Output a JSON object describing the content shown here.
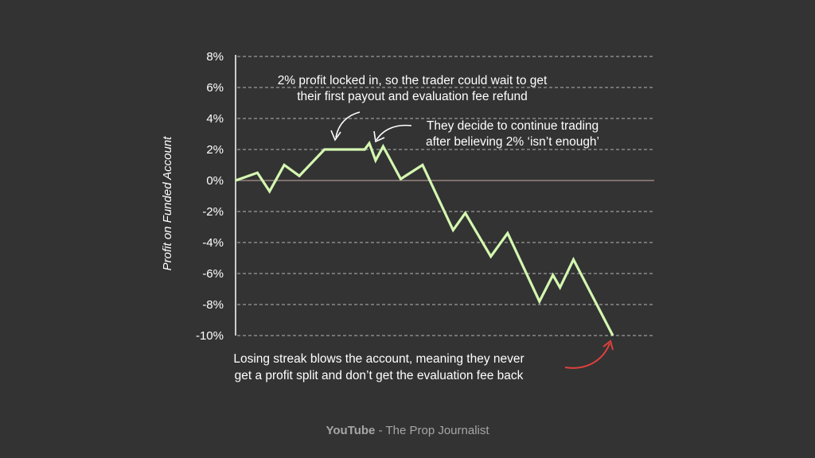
{
  "chart_data": {
    "type": "line",
    "ylabel": "Profit on Funded Account",
    "ylim": [
      -10,
      8
    ],
    "yticks": [
      8,
      6,
      4,
      2,
      0,
      -2,
      -4,
      -6,
      -8,
      -10
    ],
    "ytick_labels": [
      "8%",
      "6%",
      "4%",
      "2%",
      "0%",
      "-2%",
      "-4%",
      "-6%",
      "-8%",
      "-10%"
    ],
    "grid": true,
    "series": [
      {
        "color": "#d4f7b0",
        "x": [
          0,
          5.2,
          8.1,
          11.6,
          15.2,
          21.2,
          30.8,
          31.9,
          33.4,
          35.2,
          39.4,
          44.6,
          51.9,
          54.8,
          60.9,
          64.9,
          72.5,
          75.7,
          77.4,
          80.6,
          90
        ],
        "y": [
          0,
          0.5,
          -0.7,
          1.0,
          0.3,
          2.0,
          2.0,
          2.4,
          1.3,
          2.2,
          0.1,
          1.0,
          -3.2,
          -2.1,
          -4.9,
          -3.4,
          -7.8,
          -6.1,
          -6.9,
          -5.1,
          -10.0
        ]
      }
    ],
    "baseline": {
      "y": 0,
      "color": "#8a7a76"
    },
    "annotations": [
      {
        "lines": [
          "2% profit locked in, so the trader could wait to get",
          "their first payout and evaluation fee refund"
        ]
      },
      {
        "lines": [
          "They decide to continue trading",
          "after believing 2% ‘isn’t enough’"
        ]
      },
      {
        "lines": [
          "Losing streak blows the account, meaning they never",
          "get a profit split and don’t get the evaluation fee back"
        ]
      }
    ]
  },
  "footer": {
    "brand": "YouTube",
    "rest": " - The Prop Journalist"
  }
}
